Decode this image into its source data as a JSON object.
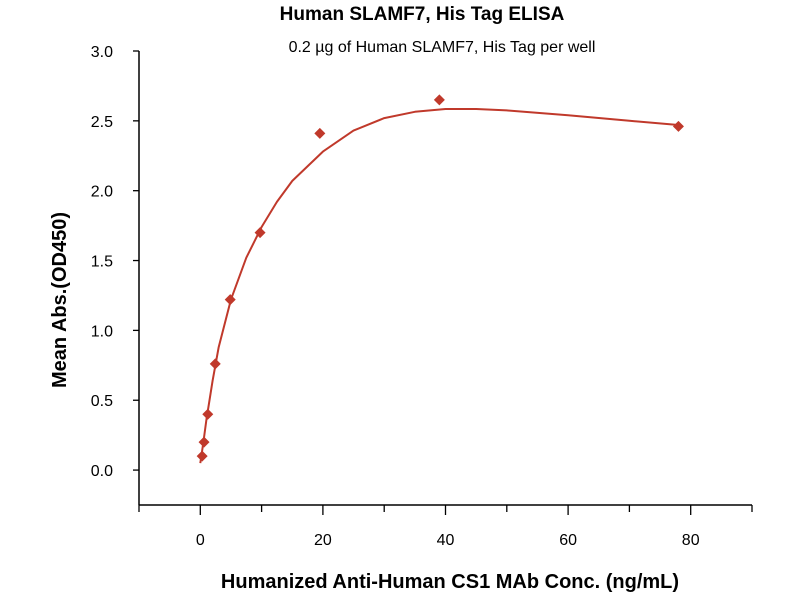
{
  "chart_data": {
    "type": "scatter",
    "title": "Human SLAMF7, His Tag ELISA",
    "subtitle": "0.2 µg of Human SLAMF7, His Tag per well",
    "xlabel": "Humanized Anti-Human CS1 MAb Conc. (ng/mL)",
    "ylabel": "Mean Abs.(OD450)",
    "xlim": [
      -10,
      90
    ],
    "ylim": [
      -0.25,
      3.0
    ],
    "x_ticks": [
      0,
      20,
      40,
      60,
      80
    ],
    "x_tick_labels": [
      "0",
      "20",
      "40",
      "60",
      "80"
    ],
    "x_minor_ticks": [
      -10,
      10,
      30,
      50,
      70,
      90
    ],
    "y_ticks": [
      0,
      0.5,
      1.0,
      1.5,
      2.0,
      2.5,
      3.0
    ],
    "y_tick_labels": [
      "0.0",
      "0.5",
      "1.0",
      "1.5",
      "2.0",
      "2.5",
      "3.0"
    ],
    "grid": false,
    "color": "#c0392b",
    "series": [
      {
        "name": "Mean Abs.",
        "x": [
          0.305,
          0.61,
          1.22,
          2.44,
          4.88,
          9.75,
          19.5,
          39,
          78
        ],
        "y": [
          0.1,
          0.2,
          0.4,
          0.76,
          1.22,
          1.7,
          2.41,
          2.65,
          2.46
        ]
      }
    ],
    "fit_curve": {
      "x": [
        0,
        0.5,
        1,
        2,
        3,
        5,
        7.5,
        10,
        12.5,
        15,
        20,
        25,
        30,
        35,
        40,
        45,
        50,
        60,
        70,
        78
      ],
      "y": [
        0.05,
        0.2,
        0.36,
        0.64,
        0.88,
        1.22,
        1.52,
        1.74,
        1.92,
        2.07,
        2.28,
        2.43,
        2.52,
        2.565,
        2.585,
        2.585,
        2.575,
        2.54,
        2.5,
        2.47
      ]
    }
  }
}
